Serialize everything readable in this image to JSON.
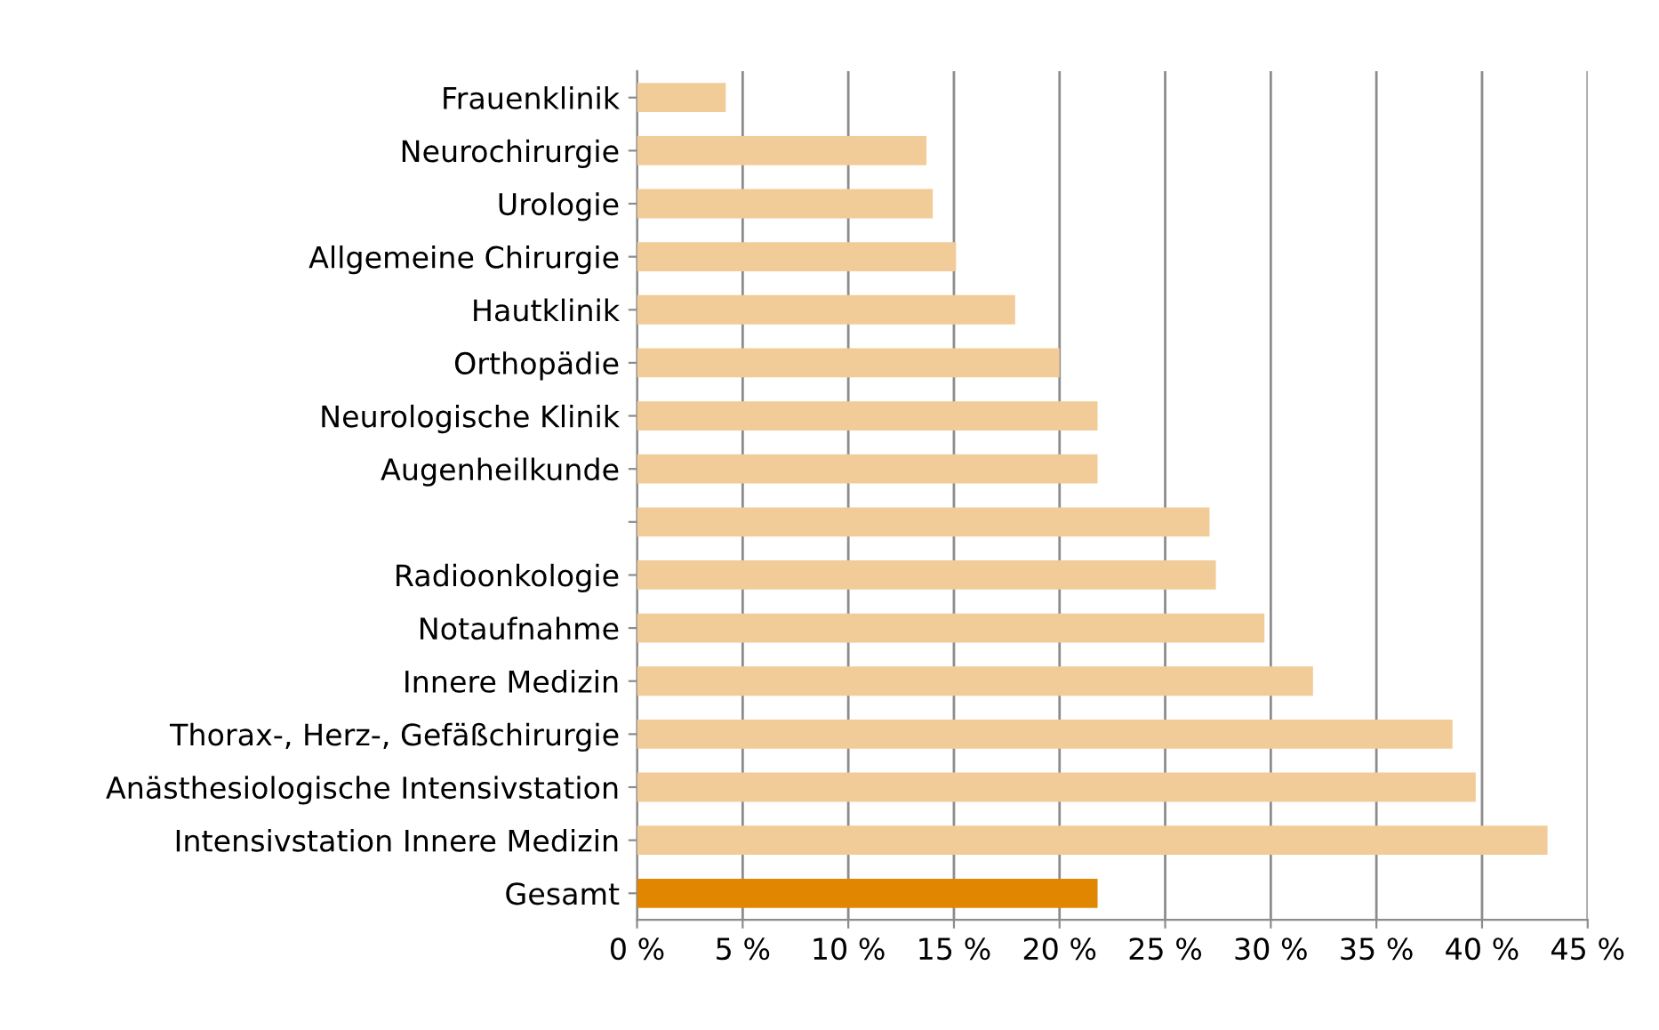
{
  "chart_data": {
    "type": "bar",
    "orientation": "horizontal",
    "categories": [
      "Frauenklinik",
      "Neurochirurgie",
      "Urologie",
      "Allgemeine Chirurgie",
      "Hautklinik",
      "Orthopädie",
      "Neurologische Klinik",
      "Augenheilkunde",
      null,
      "Radioonkologie",
      "Notaufnahme",
      "Innere Medizin",
      "Thorax-, Herz-, Gefäßchirurgie",
      "Anästhesiologische Intensivstation",
      "Intensivstation Innere Medizin",
      "Gesamt"
    ],
    "values": [
      4.2,
      13.7,
      14.0,
      15.1,
      17.9,
      20.0,
      21.8,
      21.8,
      27.1,
      27.4,
      29.7,
      32.0,
      38.6,
      39.7,
      43.1,
      21.8
    ],
    "colors": [
      "#f2cc98",
      "#f2cc98",
      "#f2cc98",
      "#f2cc98",
      "#f2cc98",
      "#f2cc98",
      "#f2cc98",
      "#f2cc98",
      "#f2cc98",
      "#f2cc98",
      "#f2cc98",
      "#f2cc98",
      "#f2cc98",
      "#f2cc98",
      "#f2cc98",
      "#e08600"
    ],
    "xlim": [
      0,
      45
    ],
    "xticks": [
      {
        "value": 0,
        "label": "0 %"
      },
      {
        "value": 5,
        "label": "5 %"
      },
      {
        "value": 10,
        "label": "10 %"
      },
      {
        "value": 15,
        "label": "15 %"
      },
      {
        "value": 20,
        "label": "20 %"
      },
      {
        "value": 25,
        "label": "25 %"
      },
      {
        "value": 30,
        "label": "30 %"
      },
      {
        "value": 35,
        "label": "35 %"
      },
      {
        "value": 40,
        "label": "40 %"
      },
      {
        "value": 45,
        "label": "45 %"
      }
    ],
    "grid": "x",
    "legend": false
  }
}
